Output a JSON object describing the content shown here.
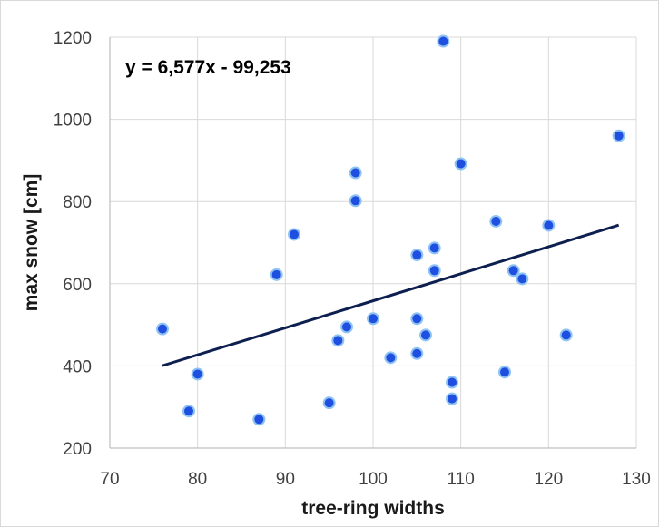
{
  "chart_data": {
    "type": "scatter",
    "title": "",
    "xlabel": "tree-ring widths",
    "ylabel": "max snow [cm]",
    "xlim": [
      70,
      130
    ],
    "ylim": [
      200,
      1200
    ],
    "xticks": [
      70,
      80,
      90,
      100,
      110,
      120,
      130
    ],
    "yticks": [
      200,
      400,
      600,
      800,
      1000,
      1200
    ],
    "grid": true,
    "legend": "none",
    "points": {
      "x": [
        76,
        79,
        80,
        87,
        89,
        91,
        95,
        96,
        97,
        98,
        98,
        100,
        102,
        105,
        105,
        105,
        106,
        107,
        107,
        108,
        109,
        109,
        110,
        114,
        115,
        116,
        117,
        120,
        122,
        128
      ],
      "y": [
        490,
        290,
        380,
        270,
        622,
        720,
        310,
        462,
        495,
        870,
        802,
        515,
        420,
        670,
        515,
        430,
        475,
        687,
        632,
        1190,
        360,
        320,
        892,
        752,
        385,
        632,
        612,
        742,
        475,
        960
      ]
    },
    "trendline": {
      "equation_label": "y = 6,577x - 99,253",
      "slope": 6.577,
      "intercept": -99.253,
      "x_range": [
        76,
        128
      ]
    },
    "colors": {
      "marker_fill": "#1f4fe0",
      "marker_edge": "#8fc3f2",
      "trendline": "#0d1f4f",
      "grid": "#d9d9d9",
      "axis": "#bfbfbf"
    }
  }
}
